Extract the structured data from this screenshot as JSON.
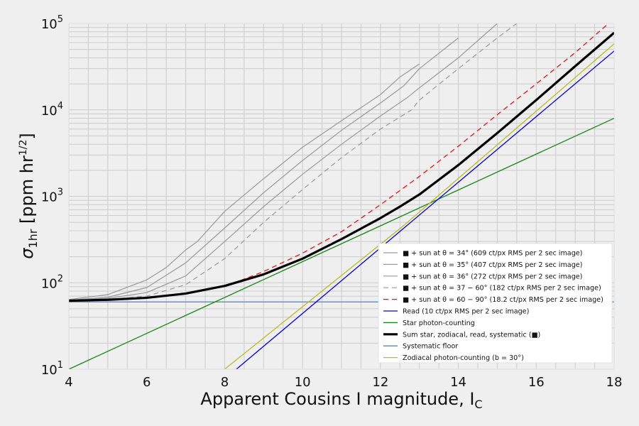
{
  "chart_data": {
    "type": "line",
    "xlabel": "Apparent Cousins I magnitude, I",
    "xlabel_sub": "C",
    "ylabel": "σ",
    "ylabel_sub": "1hr",
    "ylabel_rest": " [ppm hr",
    "ylabel_sup": "1/2",
    "ylabel_close": "]",
    "xlim": [
      4,
      18
    ],
    "ylim_log10": [
      1,
      5
    ],
    "y_scale": "log",
    "grid": true,
    "legend_position": "lower right",
    "x_ticks": [
      4,
      6,
      8,
      10,
      12,
      14,
      16,
      18
    ],
    "x_tick_labels": [
      "4",
      "6",
      "8",
      "10",
      "12",
      "14",
      "16",
      "18"
    ],
    "y_ticks": [
      {
        "base": "10",
        "exp": "1",
        "value": 10
      },
      {
        "base": "10",
        "exp": "2",
        "value": 100
      },
      {
        "base": "10",
        "exp": "3",
        "value": 1000
      },
      {
        "base": "10",
        "exp": "4",
        "value": 10000
      },
      {
        "base": "10",
        "exp": "5",
        "value": 100000
      }
    ],
    "series": [
      {
        "name": "■ + sun at θ = 34° (609 ct/px RMS per 2 sec image)",
        "color": "#999999",
        "dash": "solid",
        "width": 1.2,
        "x": [
          4,
          5,
          6,
          6.5,
          7,
          7.3,
          8,
          9,
          10,
          11,
          12,
          12.5,
          13
        ],
        "y": [
          64,
          73,
          108,
          150,
          240,
          300,
          670,
          1600,
          3700,
          7500,
          15000,
          24000,
          34000
        ]
      },
      {
        "name": "■ + sun at θ = 35° (407 ct/px RMS per 2 sec image)",
        "color": "#999999",
        "dash": "solid",
        "width": 1.2,
        "x": [
          4,
          5,
          6,
          7,
          8,
          9,
          10,
          11,
          12,
          12.6,
          13,
          14
        ],
        "y": [
          63,
          68,
          88,
          170,
          430,
          1100,
          2600,
          5800,
          12000,
          19000,
          30000,
          68000
        ]
      },
      {
        "name": "■ + sun at θ = 36° (272 ct/px RMS per 2 sec image)",
        "color": "#999999",
        "dash": "solid",
        "width": 1.2,
        "x": [
          4,
          5,
          6,
          7,
          8,
          9,
          10,
          11,
          12,
          12.7,
          13,
          14,
          15
        ],
        "y": [
          63,
          66,
          77,
          120,
          300,
          760,
          1800,
          4000,
          8500,
          14000,
          18000,
          40000,
          100000
        ]
      },
      {
        "name": "■ + sun at θ = 37 − 60° (182 ct/px RMS per 2 sec image)",
        "color": "#999999",
        "dash": "dashed",
        "width": 1.2,
        "x": [
          4,
          5,
          6,
          7,
          8,
          9,
          10,
          11,
          12,
          12.8,
          13,
          14,
          15,
          15.5
        ],
        "y": [
          62,
          64,
          70,
          95,
          190,
          500,
          1200,
          2800,
          6000,
          10000,
          13000,
          30000,
          68000,
          100000
        ]
      },
      {
        "name": "■ + sun at θ = 60 − 90° (18.2 ct/px RMS per 2 sec image)",
        "color": "#ee1111",
        "dash": "dashed",
        "width": 1.3,
        "x": [
          8,
          9,
          10,
          11,
          12,
          13,
          14,
          15,
          16,
          17,
          17.8
        ],
        "y": [
          90,
          135,
          220,
          390,
          800,
          1700,
          3800,
          8800,
          20000,
          46000,
          95000
        ]
      },
      {
        "name": "Read (10 ct/px RMS per 2 sec image)",
        "color": "#0000ee",
        "dash": "solid",
        "width": 1.3,
        "x": [
          8.3,
          18
        ],
        "y": [
          10,
          48000
        ]
      },
      {
        "name": "Star photon-counting",
        "color": "#118811",
        "dash": "solid",
        "width": 1.3,
        "x": [
          4,
          18
        ],
        "y": [
          10,
          8000
        ]
      },
      {
        "name": "Sum star, zodiacal, read, systematic (■)",
        "color": "#000000",
        "dash": "solid",
        "width": 3.2,
        "x": [
          4,
          5,
          6,
          7,
          8,
          9,
          10,
          11,
          12,
          12.5,
          13,
          14,
          15,
          16,
          17,
          18
        ],
        "y": [
          62,
          63.5,
          67,
          75,
          92,
          125,
          190,
          320,
          560,
          760,
          1050,
          2300,
          5400,
          13000,
          32000,
          78000
        ]
      },
      {
        "name": "Systematic floor",
        "color": "#4488cc",
        "dash": "solid",
        "width": 1.3,
        "x": [
          4,
          18
        ],
        "y": [
          60,
          60
        ]
      },
      {
        "name": "Zodiacal photon-counting (b = 30°)",
        "color": "#bbbb22",
        "dash": "solid",
        "width": 1.3,
        "x": [
          8,
          12.6,
          18
        ],
        "y": [
          10,
          460,
          58000
        ]
      }
    ]
  }
}
